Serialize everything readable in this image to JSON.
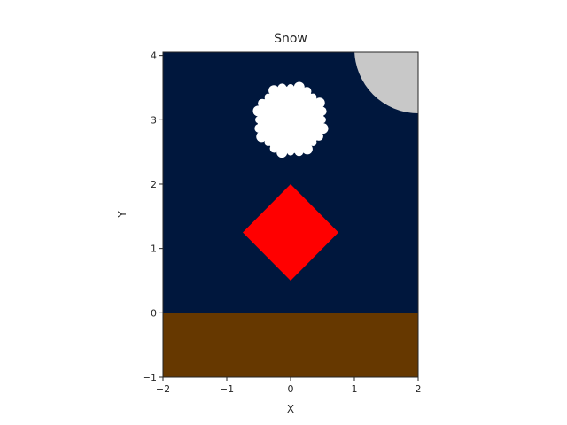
{
  "chart_data": {
    "type": "scatter",
    "title": "Snow",
    "xlabel": "X",
    "ylabel": "Y",
    "xlim": [
      -2,
      2
    ],
    "ylim": [
      -1,
      4.05
    ],
    "grid": false,
    "x_ticks": [
      -2,
      -1,
      0,
      1,
      2
    ],
    "y_ticks": [
      -1,
      0,
      1,
      2,
      3,
      4
    ],
    "x_tick_labels": [
      "−2",
      "−1",
      "0",
      "1",
      "2"
    ],
    "y_tick_labels": [
      "−1",
      "0",
      "1",
      "2",
      "3",
      "4"
    ],
    "colors": {
      "sky": "#00173d",
      "ground": "#663800",
      "moon": "#c8c8c8",
      "snowball": "#ffffff",
      "diamond": "#ff0000",
      "axis": "#262626"
    },
    "shapes": [
      {
        "name": "ground",
        "kind": "rect",
        "x": [
          -2,
          2
        ],
        "y": [
          -1,
          0
        ]
      },
      {
        "name": "moon",
        "kind": "circle",
        "center": [
          2,
          4.1
        ],
        "radius": 1.0
      },
      {
        "name": "snowball",
        "kind": "circle",
        "center": [
          0,
          3.0
        ],
        "radius": 0.52
      },
      {
        "name": "diamond",
        "kind": "polygon",
        "points": [
          [
            0,
            2.0
          ],
          [
            0.75,
            1.25
          ],
          [
            0,
            0.5
          ],
          [
            -0.75,
            1.25
          ]
        ]
      }
    ]
  }
}
